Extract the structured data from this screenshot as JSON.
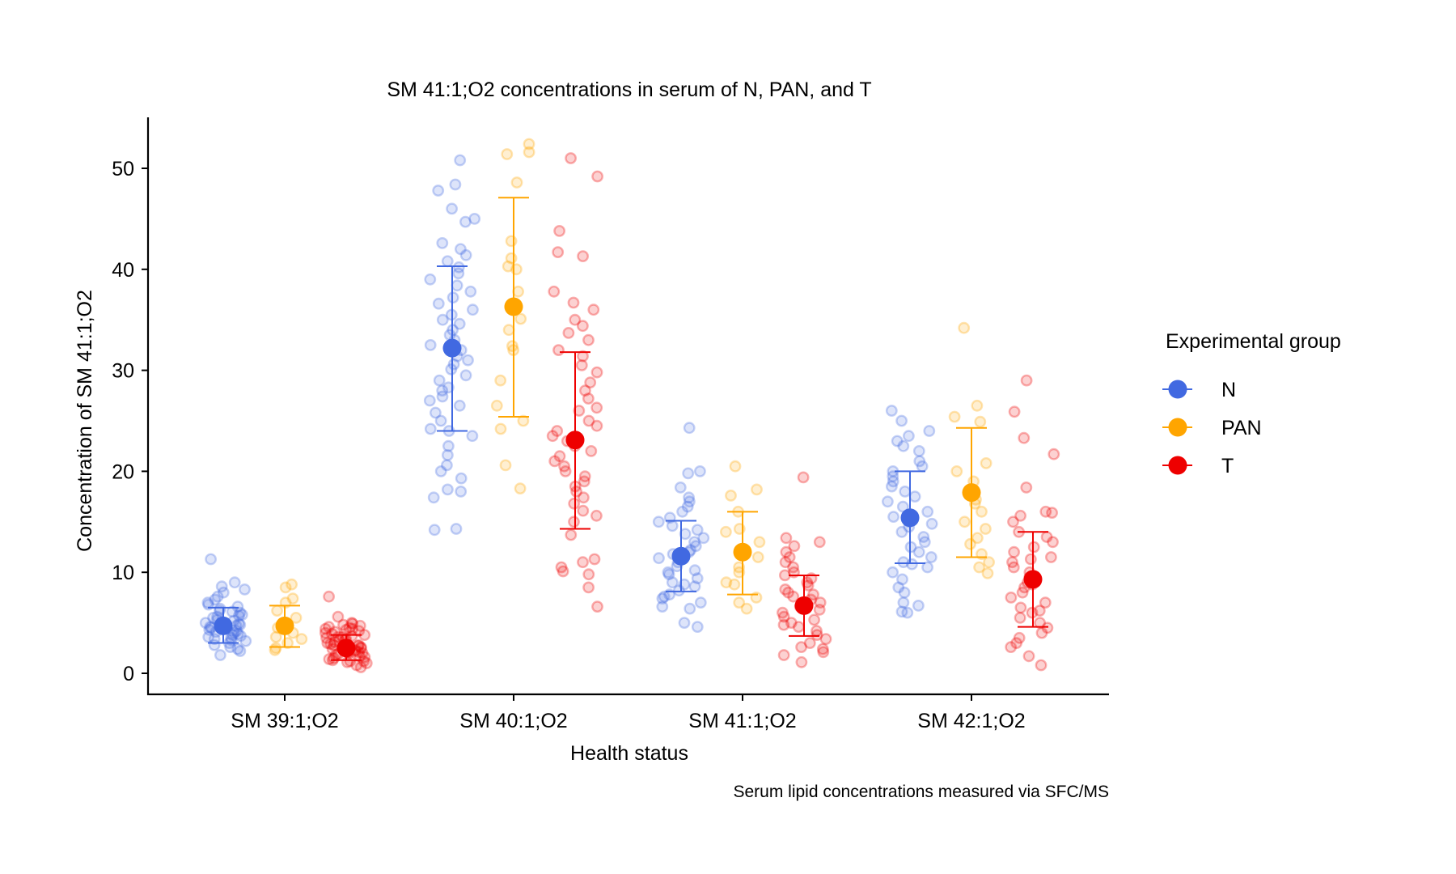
{
  "chart_data": {
    "type": "scatter",
    "subtype": "jittered strip plot with mean ± SD error bars",
    "title": "SM 41:1;O2 concentrations in serum of N, PAN, and T",
    "xlabel": "Health status",
    "ylabel": "Concentration of SM 41:1;O2",
    "caption": "Serum lipid concentrations measured via SFC/MS",
    "categories": [
      "SM 39:1;O2",
      "SM 40:1;O2",
      "SM 41:1;O2",
      "SM 42:1;O2"
    ],
    "ylim": [
      -2,
      55
    ],
    "yticks": [
      0,
      10,
      20,
      30,
      40,
      50
    ],
    "grid": false,
    "legend": {
      "title": "Experimental group",
      "position": "right",
      "entries": [
        "N",
        "PAN",
        "T"
      ]
    },
    "series": [
      {
        "name": "N",
        "color": "#4169E1",
        "mean": [
          4.7,
          32.2,
          11.6,
          15.4
        ],
        "error_low": [
          3.0,
          24.0,
          8.1,
          10.9
        ],
        "error_high": [
          6.5,
          40.3,
          15.1,
          20.0
        ],
        "points": [
          [
            2.6,
            2.8,
            3.0,
            3.2,
            3.3,
            3.5,
            3.6,
            3.7,
            3.8,
            3.9,
            4.0,
            4.1,
            4.2,
            4.3,
            4.4,
            4.5,
            4.6,
            4.7,
            4.8,
            4.9,
            5.0,
            5.1,
            5.2,
            5.3,
            5.5,
            5.6,
            5.8,
            6.0,
            6.2,
            6.4,
            6.6,
            6.8,
            7.0,
            7.3,
            7.6,
            8.0,
            8.3,
            8.6,
            9.0,
            11.3,
            1.8,
            2.2,
            2.4,
            3.4,
            4.6,
            5.7,
            6.1
          ],
          [
            14.2,
            14.3,
            17.4,
            18.0,
            18.2,
            19.3,
            20.0,
            20.6,
            21.6,
            22.5,
            23.5,
            24.0,
            24.2,
            25.0,
            25.8,
            26.5,
            27.0,
            27.4,
            28.0,
            28.3,
            29.0,
            29.5,
            30.1,
            30.6,
            31.0,
            31.4,
            32.0,
            32.5,
            33.0,
            33.5,
            34.0,
            34.6,
            35.0,
            35.5,
            36.0,
            36.6,
            37.2,
            37.8,
            38.4,
            39.0,
            39.6,
            40.2,
            40.8,
            41.4,
            42.0,
            42.6,
            44.7,
            45.0,
            46.0,
            47.8,
            48.4,
            50.8
          ],
          [
            4.6,
            5.0,
            6.4,
            6.6,
            7.0,
            7.4,
            7.8,
            8.2,
            8.6,
            9.0,
            9.4,
            9.8,
            10.2,
            10.6,
            11.0,
            11.4,
            11.8,
            12.2,
            12.6,
            13.0,
            13.4,
            13.8,
            14.2,
            14.6,
            15.0,
            15.4,
            16.0,
            16.5,
            17.0,
            17.4,
            18.4,
            19.8,
            20.0,
            24.3,
            7.6,
            8.8,
            10.0,
            12.0
          ],
          [
            6.0,
            6.1,
            6.7,
            7.0,
            8.0,
            8.5,
            9.3,
            10.0,
            10.8,
            11.5,
            12.0,
            12.5,
            13.0,
            13.5,
            14.0,
            14.5,
            15.0,
            15.5,
            16.0,
            16.5,
            17.0,
            17.5,
            18.0,
            18.5,
            19.0,
            19.5,
            20.0,
            20.5,
            21.0,
            22.0,
            22.5,
            23.0,
            23.5,
            24.0,
            25.0,
            26.0,
            10.5,
            11.0,
            14.8
          ]
        ]
      },
      {
        "name": "PAN",
        "color": "#FFA500",
        "mean": [
          4.7,
          36.3,
          12.0,
          17.9
        ],
        "error_low": [
          2.6,
          25.4,
          7.8,
          11.5
        ],
        "error_high": [
          6.7,
          47.1,
          16.0,
          24.3
        ],
        "points": [
          [
            2.3,
            2.5,
            3.0,
            3.4,
            3.6,
            4.0,
            4.5,
            5.5,
            6.2,
            7.0,
            7.4,
            8.5,
            8.8
          ],
          [
            18.3,
            20.6,
            24.2,
            25.0,
            26.5,
            29.0,
            32.0,
            32.4,
            34.0,
            35.1,
            37.8,
            40.0,
            40.3,
            41.1,
            42.8,
            48.6,
            51.4,
            51.6,
            52.4
          ],
          [
            6.4,
            7.0,
            7.5,
            8.8,
            9.0,
            10.0,
            10.5,
            11.5,
            13.0,
            14.0,
            14.3,
            16.0,
            17.6,
            18.2,
            20.5
          ],
          [
            9.9,
            10.5,
            11.0,
            11.8,
            12.8,
            13.4,
            14.3,
            15.0,
            16.0,
            16.8,
            17.2,
            19.0,
            20.0,
            20.8,
            24.9,
            25.4,
            26.5,
            34.2
          ]
        ]
      },
      {
        "name": "T",
        "color": "#EE0000",
        "mean": [
          2.5,
          23.1,
          6.7,
          9.3
        ],
        "error_low": [
          1.3,
          14.3,
          3.7,
          4.6
        ],
        "error_high": [
          3.8,
          31.8,
          9.7,
          14.0
        ],
        "points": [
          [
            0.6,
            0.8,
            1.0,
            1.1,
            1.2,
            1.3,
            1.4,
            1.5,
            1.6,
            1.7,
            1.8,
            1.9,
            2.0,
            2.1,
            2.2,
            2.3,
            2.4,
            2.5,
            2.6,
            2.7,
            2.8,
            2.9,
            3.0,
            3.1,
            3.2,
            3.3,
            3.4,
            3.5,
            3.6,
            3.7,
            3.8,
            3.9,
            4.0,
            4.1,
            4.2,
            4.3,
            4.4,
            4.5,
            4.6,
            4.7,
            4.8,
            4.9,
            5.0,
            5.6,
            7.6,
            1.2,
            2.0,
            2.8,
            3.6,
            4.4
          ],
          [
            6.6,
            8.5,
            9.8,
            10.1,
            10.5,
            11.0,
            11.3,
            13.7,
            15.0,
            15.6,
            16.1,
            16.8,
            17.4,
            18.0,
            18.5,
            19.0,
            19.5,
            20.0,
            20.5,
            21.0,
            21.5,
            22.0,
            22.5,
            23.0,
            23.5,
            24.0,
            24.5,
            25.0,
            26.0,
            26.3,
            27.2,
            28.0,
            28.8,
            29.8,
            30.5,
            31.4,
            32.0,
            33.0,
            33.7,
            34.4,
            35.0,
            36.0,
            36.7,
            37.8,
            41.3,
            41.7,
            43.8,
            49.2,
            51.0
          ],
          [
            1.1,
            1.8,
            2.1,
            2.6,
            3.0,
            3.4,
            3.8,
            4.2,
            4.6,
            5.0,
            5.3,
            5.6,
            6.0,
            6.3,
            6.6,
            7.0,
            7.3,
            7.6,
            8.0,
            8.3,
            8.7,
            9.0,
            9.4,
            9.7,
            10.0,
            10.5,
            11.0,
            11.5,
            12.0,
            12.6,
            13.0,
            13.4,
            19.4,
            2.4,
            4.8,
            7.8
          ],
          [
            0.8,
            1.7,
            2.6,
            3.0,
            3.5,
            4.0,
            4.5,
            5.0,
            5.5,
            6.0,
            6.5,
            7.0,
            7.5,
            8.0,
            8.5,
            9.0,
            9.5,
            10.0,
            10.5,
            11.0,
            11.5,
            12.0,
            12.5,
            13.0,
            13.5,
            14.0,
            15.0,
            15.6,
            15.9,
            16.0,
            18.4,
            21.7,
            23.3,
            25.9,
            29.0,
            6.2,
            8.8,
            11.3
          ]
        ]
      }
    ]
  }
}
